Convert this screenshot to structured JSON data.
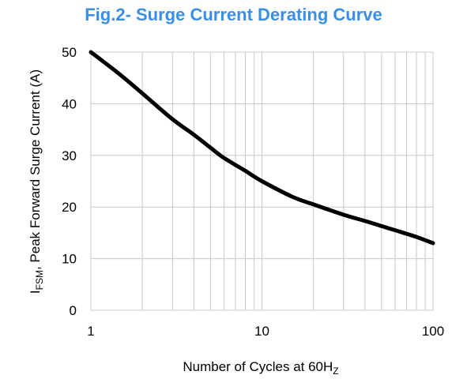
{
  "chart_data": {
    "type": "line",
    "title": "Fig.2- Surge Current Derating Curve",
    "xlabel": {
      "main": "Number of Cycles at 60H",
      "sub": "Z"
    },
    "ylabel": {
      "prefix": "I",
      "sub": "FSM",
      "rest": ", Peak Forward Surge Current (A)"
    },
    "xscale": "log",
    "xlim": [
      1,
      100
    ],
    "ylim": [
      0,
      50
    ],
    "xticks": [
      1,
      10,
      100
    ],
    "yticks": [
      0,
      10,
      20,
      30,
      40,
      50
    ],
    "grid": true,
    "series": [
      {
        "x": [
          1,
          1.5,
          2,
          3,
          4,
          5,
          6,
          8,
          10,
          15,
          20,
          30,
          40,
          50,
          60,
          80,
          100
        ],
        "y": [
          50,
          45.5,
          42,
          37,
          34,
          31.5,
          29.5,
          27,
          25,
          22,
          20.5,
          18.5,
          17.3,
          16.3,
          15.5,
          14.2,
          13
        ]
      }
    ],
    "line_color": "#000000"
  }
}
